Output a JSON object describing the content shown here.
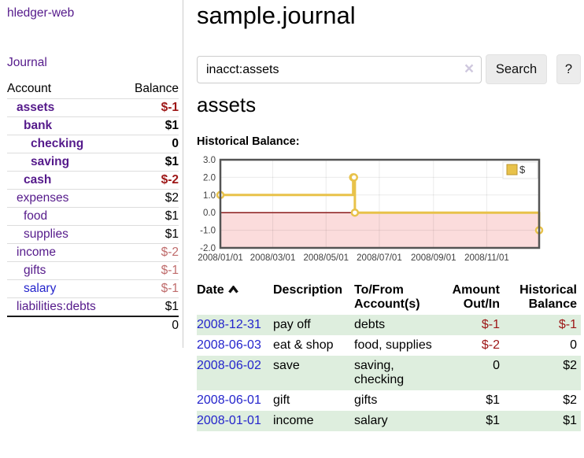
{
  "colors": {
    "link_visited": "#551a8b",
    "link_unvisited": "#2424cc",
    "negative_strong": "#9d1616",
    "negative_soft": "#bf6b6b",
    "row_stripe_green": "#deeede",
    "chart_series_gold": "#e8c24a",
    "chart_negative_region": "#fbdcdc",
    "chart_zero_line": "#8b1a1a"
  },
  "app": {
    "brand": "hledger-web",
    "nav_journal": "Journal"
  },
  "sidebar": {
    "accounts": {
      "header_account": "Account",
      "header_balance": "Balance",
      "rows": [
        {
          "account": "assets",
          "balance": "$-1",
          "indent": 1,
          "bold": true,
          "balance_class": "neg-strong",
          "link_class": "purple"
        },
        {
          "account": "bank",
          "balance": "$1",
          "indent": 2,
          "bold": true,
          "balance_class": "",
          "link_class": "purple"
        },
        {
          "account": "checking",
          "balance": "0",
          "indent": 3,
          "bold": true,
          "balance_class": "",
          "link_class": "purple"
        },
        {
          "account": "saving",
          "balance": "$1",
          "indent": 3,
          "bold": true,
          "balance_class": "",
          "link_class": "purple"
        },
        {
          "account": "cash",
          "balance": "$-2",
          "indent": 2,
          "bold": true,
          "balance_class": "neg-strong",
          "link_class": "purple"
        },
        {
          "account": "expenses",
          "balance": "$2",
          "indent": 1,
          "bold": false,
          "balance_class": "",
          "link_class": "purple"
        },
        {
          "account": "food",
          "balance": "$1",
          "indent": 2,
          "bold": false,
          "balance_class": "",
          "link_class": "purple"
        },
        {
          "account": "supplies",
          "balance": "$1",
          "indent": 2,
          "bold": false,
          "balance_class": "",
          "link_class": "purple"
        },
        {
          "account": "income",
          "balance": "$-2",
          "indent": 1,
          "bold": false,
          "balance_class": "neg-soft",
          "link_class": "purple"
        },
        {
          "account": "gifts",
          "balance": "$-1",
          "indent": 2,
          "bold": false,
          "balance_class": "neg-soft",
          "link_class": "purple"
        },
        {
          "account": "salary",
          "balance": "$-1",
          "indent": 2,
          "bold": false,
          "balance_class": "neg-soft",
          "link_class": "blue"
        },
        {
          "account": "liabilities:debts",
          "balance": "$1",
          "indent": 1,
          "bold": false,
          "balance_class": "",
          "link_class": "purple"
        }
      ],
      "total": "0"
    }
  },
  "main": {
    "title": "sample.journal",
    "search": {
      "value": "inacct:assets",
      "clear_icon": "×",
      "search_button": "Search",
      "help_button": "?"
    },
    "account_heading": "assets",
    "chart_title": "Historical Balance:"
  },
  "chart_data": {
    "type": "line",
    "step": true,
    "title": "Historical Balance:",
    "series": [
      {
        "name": "$",
        "color": "#e8c24a",
        "points": [
          [
            "2008-01-01",
            1
          ],
          [
            "2008-06-01",
            2
          ],
          [
            "2008-06-02",
            2
          ],
          [
            "2008-06-03",
            0
          ],
          [
            "2008-12-31",
            -1
          ]
        ]
      }
    ],
    "x_range": [
      "2008-01-01",
      "2008-12-31"
    ],
    "xticks": [
      "2008/01/01",
      "2008/03/01",
      "2008/05/01",
      "2008/07/01",
      "2008/09/01",
      "2008/11/01"
    ],
    "ylim": [
      -2,
      3
    ],
    "yticks": [
      -2,
      -1,
      0,
      1,
      2,
      3
    ],
    "ytick_labels": [
      "-2.0",
      "-1.0",
      "0.0",
      "1.0",
      "2.0",
      "3.0"
    ],
    "grid": true,
    "legend_position": "top-right",
    "legend_label": "$",
    "negative_region_color": "#fbdcdc",
    "zero_line_color": "#8b1a1a"
  },
  "register": {
    "headers": [
      "Date",
      "Description",
      "To/From Account(s)",
      "Amount Out/In",
      "Historical Balance"
    ],
    "sort_icon": "chevron-up",
    "rows": [
      {
        "date": "2008-12-31",
        "description": "pay off",
        "accounts": "debts",
        "amount": "$-1",
        "amount_class": "neg",
        "balance": "$-1",
        "balance_class": "neg"
      },
      {
        "date": "2008-06-03",
        "description": "eat & shop",
        "accounts": "food, supplies",
        "amount": "$-2",
        "amount_class": "neg",
        "balance": "0",
        "balance_class": ""
      },
      {
        "date": "2008-06-02",
        "description": "save",
        "accounts": "saving, checking",
        "amount": "0",
        "amount_class": "",
        "balance": "$2",
        "balance_class": ""
      },
      {
        "date": "2008-06-01",
        "description": "gift",
        "accounts": "gifts",
        "amount": "$1",
        "amount_class": "",
        "balance": "$2",
        "balance_class": ""
      },
      {
        "date": "2008-01-01",
        "description": "income",
        "accounts": "salary",
        "amount": "$1",
        "amount_class": "",
        "balance": "$1",
        "balance_class": ""
      }
    ]
  }
}
